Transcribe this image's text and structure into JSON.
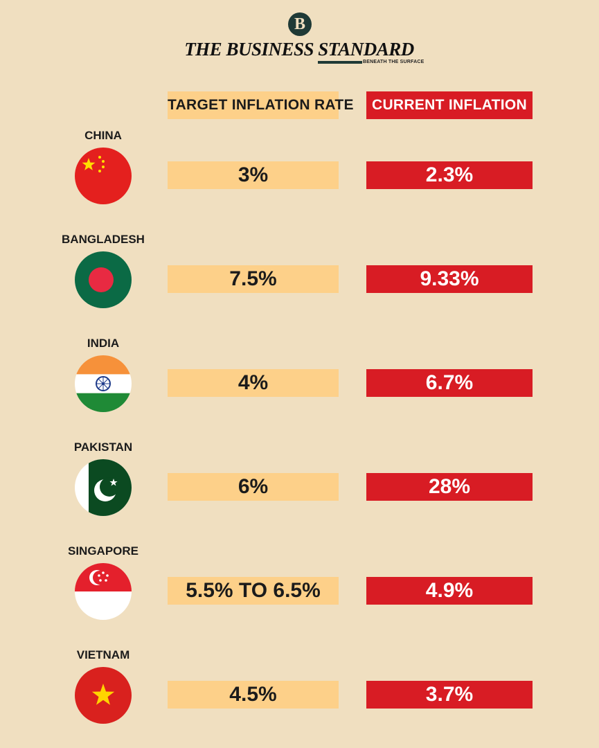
{
  "brand": {
    "badge": "B",
    "title": "THE BUSINESS STANDARD",
    "tagline": "BENEATH THE SURFACE",
    "color": "#1f3a36"
  },
  "chart_data": {
    "type": "table",
    "columns": [
      "TARGET INFLATION RATE",
      "CURRENT INFLATION"
    ],
    "rows": [
      {
        "country": "CHINA",
        "flag": "china-flag-icon",
        "target": "3%",
        "current": "2.3%"
      },
      {
        "country": "BANGLADESH",
        "flag": "bangladesh-flag-icon",
        "target": "7.5%",
        "current": "9.33%"
      },
      {
        "country": "INDIA",
        "flag": "india-flag-icon",
        "target": "4%",
        "current": "6.7%"
      },
      {
        "country": "PAKISTAN",
        "flag": "pakistan-flag-icon",
        "target": "6%",
        "current": "28%"
      },
      {
        "country": "SINGAPORE",
        "flag": "singapore-flag-icon",
        "target": "5.5% TO 6.5%",
        "current": "4.9%"
      },
      {
        "country": "VIETNAM",
        "flag": "vietnam-flag-icon",
        "target": "4.5%",
        "current": "3.7%"
      }
    ],
    "colors": {
      "background": "#f0dfc0",
      "target": "#fdd089",
      "current": "#d81c24"
    }
  }
}
